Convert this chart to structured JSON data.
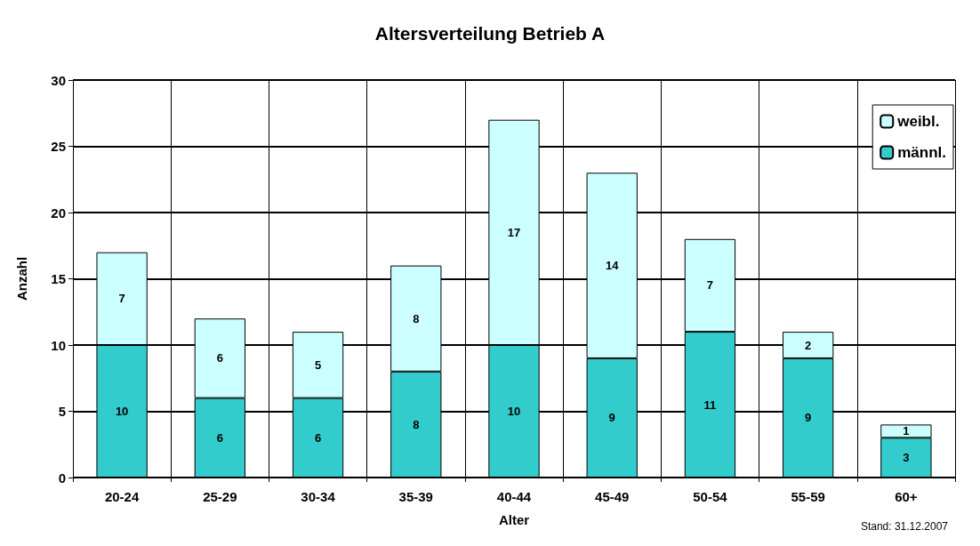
{
  "chart_data": {
    "type": "bar",
    "title": "Altersverteilung Betrieb A",
    "xlabel": "Alter",
    "ylabel": "Anzahl",
    "categories": [
      "20-24",
      "25-29",
      "30-34",
      "35-39",
      "40-44",
      "45-49",
      "50-54",
      "55-59",
      "60+"
    ],
    "series": [
      {
        "name": "männl.",
        "color": "#33cccc",
        "values": [
          10,
          6,
          6,
          8,
          10,
          9,
          11,
          9,
          3
        ]
      },
      {
        "name": "weibl.",
        "color": "#ccffff",
        "values": [
          7,
          6,
          5,
          8,
          17,
          14,
          7,
          2,
          1
        ]
      }
    ],
    "stacked": true,
    "data_labels": true,
    "ylim": [
      0,
      30
    ],
    "yticks": [
      0,
      5,
      10,
      15,
      20,
      25,
      30
    ],
    "grid": true,
    "legend": "top right",
    "annotations": [
      "Stand: 31.12.2007"
    ]
  }
}
